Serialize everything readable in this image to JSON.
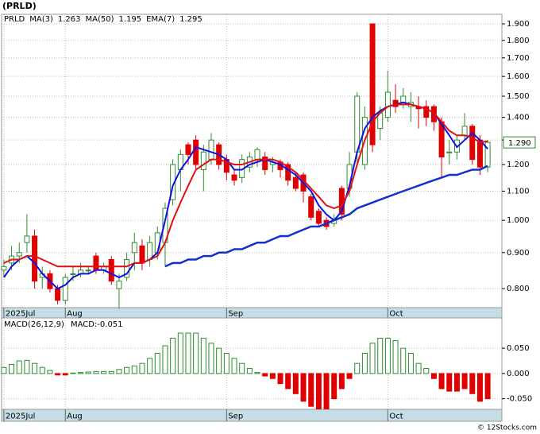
{
  "chart_data": [
    {
      "type": "candlestick",
      "title": "(PRLD)",
      "symbol": "PRLD",
      "log_scale": true,
      "grid": true,
      "xlim": [
        -0.3,
        64.85
      ],
      "xticks": [
        {
          "value": 0,
          "label": "2025Jul"
        },
        {
          "value": 8,
          "label": "Aug"
        },
        {
          "value": 29,
          "label": "Sep"
        },
        {
          "value": 50,
          "label": "Oct"
        }
      ],
      "ylim": [
        0.752,
        1.96
      ],
      "yticks": [
        {
          "value": 0.8,
          "label": "0.800"
        },
        {
          "value": 0.9,
          "label": "0.900"
        },
        {
          "value": 1.0,
          "label": "1.000"
        },
        {
          "value": 1.1,
          "label": "1.100"
        },
        {
          "value": 1.2,
          "label": "1.200"
        },
        {
          "value": 1.3,
          "label": "1.300"
        },
        {
          "value": 1.4,
          "label": "1.400"
        },
        {
          "value": 1.5,
          "label": "1.500"
        },
        {
          "value": 1.6,
          "label": "1.600"
        },
        {
          "value": 1.7,
          "label": "1.700"
        },
        {
          "value": 1.8,
          "label": "1.800"
        },
        {
          "value": 1.9,
          "label": "1.900"
        }
      ],
      "up_color": "#2e8b2e",
      "down_color": "#e00000",
      "last_price": {
        "value": 1.29,
        "label": "1.290"
      },
      "open": [
        0.85,
        0.87,
        0.89,
        0.93,
        0.95,
        0.83,
        0.84,
        0.8,
        0.77,
        0.84,
        0.84,
        0.85,
        0.89,
        0.85,
        0.88,
        0.8,
        0.83,
        0.9,
        0.92,
        0.88,
        0.9,
        0.93,
        1.07,
        1.18,
        1.28,
        1.3,
        1.18,
        1.22,
        1.28,
        1.22,
        1.16,
        1.15,
        1.19,
        1.22,
        1.23,
        1.2,
        1.21,
        1.2,
        1.15,
        1.16,
        1.08,
        1.03,
        1.0,
        0.99,
        1.11,
        1.11,
        1.25,
        1.2,
        1.9,
        1.35,
        1.4,
        1.48,
        1.46,
        1.45,
        1.45,
        1.45,
        1.45,
        1.38,
        1.25,
        1.25,
        1.32,
        1.36,
        1.3,
        1.19
      ],
      "high": [
        0.88,
        0.92,
        0.93,
        1.02,
        0.97,
        0.86,
        0.85,
        0.81,
        0.84,
        0.86,
        0.87,
        0.86,
        0.9,
        0.87,
        0.89,
        0.84,
        0.9,
        0.96,
        0.94,
        0.95,
        0.98,
        1.06,
        1.22,
        1.26,
        1.29,
        1.32,
        1.28,
        1.33,
        1.29,
        1.24,
        1.18,
        1.24,
        1.25,
        1.27,
        1.25,
        1.23,
        1.22,
        1.21,
        1.17,
        1.17,
        1.09,
        1.04,
        1.01,
        1.02,
        1.12,
        1.25,
        1.52,
        1.45,
        1.9,
        1.45,
        1.63,
        1.56,
        1.54,
        1.52,
        1.5,
        1.48,
        1.46,
        1.4,
        1.3,
        1.32,
        1.42,
        1.37,
        1.32,
        1.3
      ],
      "low": [
        0.83,
        0.85,
        0.87,
        0.9,
        0.8,
        0.8,
        0.79,
        0.76,
        0.76,
        0.82,
        0.83,
        0.84,
        0.84,
        0.84,
        0.81,
        0.75,
        0.82,
        0.85,
        0.85,
        0.86,
        0.88,
        0.86,
        1.05,
        1.1,
        1.2,
        1.18,
        1.1,
        1.2,
        1.18,
        1.14,
        1.12,
        1.13,
        1.17,
        1.19,
        1.16,
        1.17,
        1.15,
        1.12,
        1.1,
        1.06,
        1.0,
        0.98,
        0.97,
        0.98,
        1.0,
        1.08,
        1.2,
        1.18,
        1.25,
        1.3,
        1.38,
        1.42,
        1.44,
        1.38,
        1.35,
        1.36,
        1.34,
        1.15,
        1.2,
        1.22,
        1.3,
        1.2,
        1.16,
        1.17
      ],
      "close": [
        0.86,
        0.89,
        0.9,
        0.95,
        0.82,
        0.84,
        0.8,
        0.77,
        0.83,
        0.84,
        0.85,
        0.85,
        0.85,
        0.86,
        0.82,
        0.82,
        0.88,
        0.93,
        0.87,
        0.93,
        0.96,
        1.04,
        1.2,
        1.24,
        1.24,
        1.2,
        1.25,
        1.3,
        1.2,
        1.17,
        1.14,
        1.22,
        1.23,
        1.26,
        1.18,
        1.21,
        1.18,
        1.14,
        1.11,
        1.1,
        1.01,
        0.99,
        0.98,
        1.0,
        1.02,
        1.2,
        1.5,
        1.4,
        1.28,
        1.42,
        1.52,
        1.45,
        1.5,
        1.47,
        1.44,
        1.4,
        1.38,
        1.23,
        1.25,
        1.3,
        1.36,
        1.22,
        1.19,
        1.29
      ],
      "series": [
        {
          "name": "MA(3)",
          "current": 1.263,
          "color": "#1010e0",
          "width": 2,
          "values": [
            0.83,
            0.86,
            0.88,
            0.89,
            0.87,
            0.84,
            0.82,
            0.8,
            0.81,
            0.83,
            0.84,
            0.84,
            0.85,
            0.85,
            0.84,
            0.83,
            0.84,
            0.87,
            0.87,
            0.88,
            0.9,
            1.0,
            1.12,
            1.18,
            1.22,
            1.27,
            1.26,
            1.25,
            1.24,
            1.22,
            1.18,
            1.18,
            1.2,
            1.21,
            1.22,
            1.21,
            1.2,
            1.18,
            1.16,
            1.13,
            1.1,
            1.05,
            1.02,
            1.0,
            1.03,
            1.12,
            1.25,
            1.35,
            1.4,
            1.43,
            1.45,
            1.46,
            1.47,
            1.46,
            1.45,
            1.44,
            1.42,
            1.37,
            1.32,
            1.27,
            1.3,
            1.33,
            1.3,
            1.263
          ]
        },
        {
          "name": "MA(50)",
          "current": 1.195,
          "color": "#1030d0",
          "width": 2.5,
          "values": [
            null,
            null,
            null,
            null,
            null,
            null,
            null,
            null,
            null,
            null,
            null,
            null,
            null,
            null,
            null,
            null,
            null,
            null,
            null,
            null,
            null,
            0.86,
            0.87,
            0.87,
            0.88,
            0.88,
            0.89,
            0.89,
            0.9,
            0.9,
            0.91,
            0.91,
            0.92,
            0.93,
            0.93,
            0.94,
            0.95,
            0.95,
            0.96,
            0.97,
            0.98,
            0.98,
            0.99,
            1.0,
            1.01,
            1.02,
            1.04,
            1.05,
            1.06,
            1.07,
            1.08,
            1.09,
            1.1,
            1.11,
            1.12,
            1.13,
            1.14,
            1.15,
            1.16,
            1.16,
            1.17,
            1.18,
            1.18,
            1.195
          ]
        },
        {
          "name": "EMA(7)",
          "current": 1.295,
          "color": "#e01010",
          "width": 2,
          "values": [
            0.87,
            0.88,
            0.88,
            0.89,
            0.89,
            0.88,
            0.87,
            0.86,
            0.86,
            0.86,
            0.86,
            0.86,
            0.86,
            0.86,
            0.86,
            0.86,
            0.86,
            0.87,
            0.87,
            0.88,
            0.89,
            0.93,
            1.0,
            1.06,
            1.12,
            1.18,
            1.2,
            1.22,
            1.22,
            1.21,
            1.2,
            1.2,
            1.21,
            1.22,
            1.22,
            1.22,
            1.21,
            1.19,
            1.17,
            1.14,
            1.11,
            1.08,
            1.05,
            1.04,
            1.05,
            1.1,
            1.2,
            1.3,
            1.38,
            1.42,
            1.45,
            1.46,
            1.46,
            1.46,
            1.45,
            1.44,
            1.42,
            1.38,
            1.34,
            1.32,
            1.32,
            1.31,
            1.29,
            1.295
          ]
        }
      ]
    },
    {
      "type": "macd",
      "title": "MACD(26,12,9)",
      "macd_label": "MACD:-0.051",
      "grid": true,
      "xlim": [
        -0.3,
        64.85
      ],
      "xticks": [
        {
          "value": 0,
          "label": "2025Jul"
        },
        {
          "value": 8,
          "label": "Aug"
        },
        {
          "value": 29,
          "label": "Sep"
        },
        {
          "value": 50,
          "label": "Oct"
        }
      ],
      "ylim": [
        -0.071,
        0.11
      ],
      "yticks": [
        {
          "value": 0.05,
          "label": "0.050"
        },
        {
          "value": 0,
          "label": "0.000"
        },
        {
          "value": -0.05,
          "label": "-0.050"
        }
      ],
      "up_color": "#2e8b2e",
      "down_color": "#e00000",
      "values": [
        0.012,
        0.018,
        0.025,
        0.026,
        0.02,
        0.012,
        0.006,
        -0.003,
        -0.003,
        0.001,
        0.002,
        0.003,
        0.004,
        0.004,
        0.004,
        0.008,
        0.012,
        0.015,
        0.02,
        0.03,
        0.04,
        0.055,
        0.07,
        0.08,
        0.08,
        0.08,
        0.07,
        0.06,
        0.05,
        0.04,
        0.03,
        0.02,
        0.01,
        0.002,
        -0.005,
        -0.01,
        -0.02,
        -0.03,
        -0.04,
        -0.055,
        -0.065,
        -0.07,
        -0.07,
        -0.05,
        -0.03,
        -0.01,
        0.02,
        0.04,
        0.06,
        0.07,
        0.07,
        0.065,
        0.05,
        0.04,
        0.02,
        0.01,
        -0.01,
        -0.03,
        -0.035,
        -0.035,
        -0.03,
        -0.04,
        -0.055,
        -0.05
      ]
    }
  ],
  "footer": "© 12Stocks.com"
}
